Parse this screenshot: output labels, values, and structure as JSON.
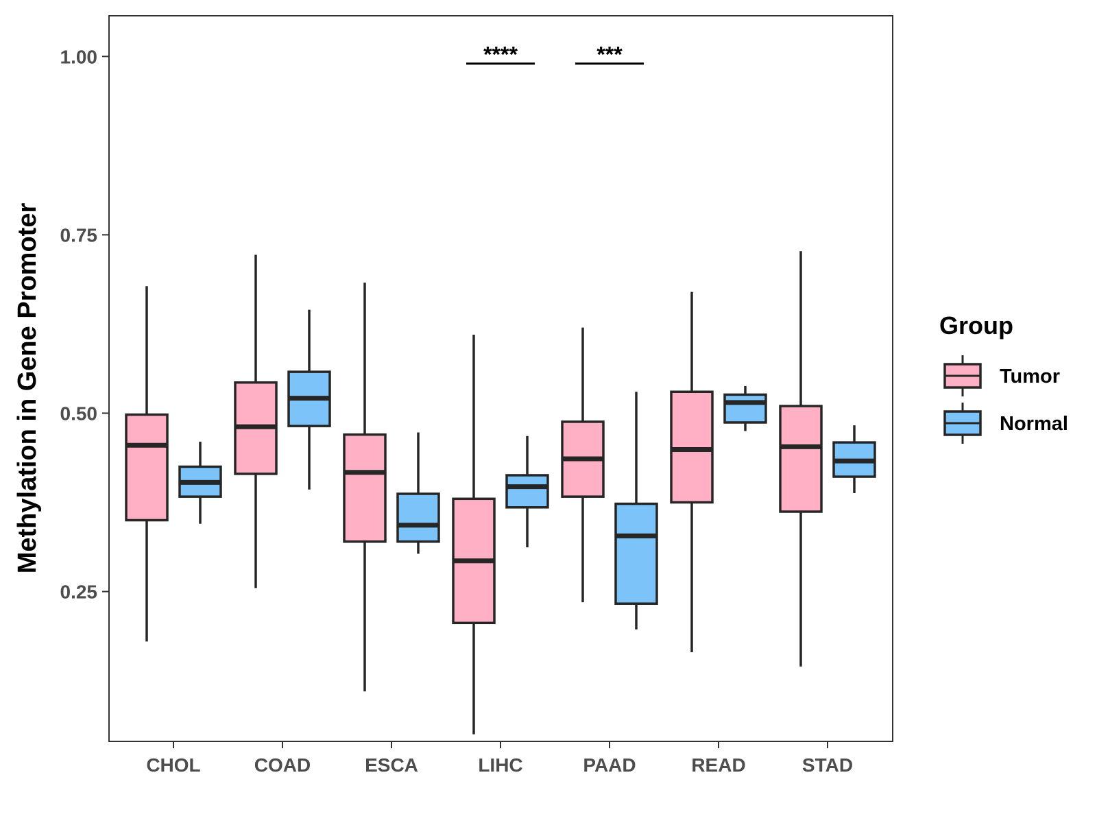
{
  "chart_data": {
    "type": "boxplot",
    "title": "",
    "xlabel": "",
    "ylabel": "Methylation in Gene Promoter",
    "ylim": [
      0.04,
      1.057
    ],
    "yticks": [
      0.25,
      0.5,
      0.75,
      1.0
    ],
    "ytick_labels": [
      "0.25",
      "0.50",
      "0.75",
      "1.00"
    ],
    "grid": false,
    "categories": [
      "CHOL",
      "COAD",
      "ESCA",
      "LIHC",
      "PAAD",
      "READ",
      "STAD"
    ],
    "legend": {
      "title": "Group",
      "position": "right",
      "entries": [
        {
          "name": "Tumor",
          "color": "#FFB0C4"
        },
        {
          "name": "Normal",
          "color": "#7BC3F8"
        }
      ]
    },
    "series": [
      {
        "name": "Tumor",
        "color": "#FFB0C4",
        "boxes": [
          {
            "category": "CHOL",
            "whisker_low": 0.18,
            "q1": 0.35,
            "median": 0.455,
            "q3": 0.498,
            "whisker_high": 0.678
          },
          {
            "category": "COAD",
            "whisker_low": 0.255,
            "q1": 0.415,
            "median": 0.481,
            "q3": 0.543,
            "whisker_high": 0.722
          },
          {
            "category": "ESCA",
            "whisker_low": 0.11,
            "q1": 0.32,
            "median": 0.417,
            "q3": 0.47,
            "whisker_high": 0.683
          },
          {
            "category": "LIHC",
            "whisker_low": 0.05,
            "q1": 0.206,
            "median": 0.293,
            "q3": 0.38,
            "whisker_high": 0.61
          },
          {
            "category": "PAAD",
            "whisker_low": 0.235,
            "q1": 0.383,
            "median": 0.436,
            "q3": 0.488,
            "whisker_high": 0.62
          },
          {
            "category": "READ",
            "whisker_low": 0.165,
            "q1": 0.375,
            "median": 0.449,
            "q3": 0.53,
            "whisker_high": 0.67
          },
          {
            "category": "STAD",
            "whisker_low": 0.145,
            "q1": 0.362,
            "median": 0.453,
            "q3": 0.51,
            "whisker_high": 0.727
          }
        ]
      },
      {
        "name": "Normal",
        "color": "#7BC3F8",
        "boxes": [
          {
            "category": "CHOL",
            "whisker_low": 0.345,
            "q1": 0.383,
            "median": 0.403,
            "q3": 0.425,
            "whisker_high": 0.46
          },
          {
            "category": "COAD",
            "whisker_low": 0.393,
            "q1": 0.482,
            "median": 0.521,
            "q3": 0.558,
            "whisker_high": 0.645
          },
          {
            "category": "ESCA",
            "whisker_low": 0.303,
            "q1": 0.32,
            "median": 0.343,
            "q3": 0.387,
            "whisker_high": 0.473
          },
          {
            "category": "LIHC",
            "whisker_low": 0.312,
            "q1": 0.368,
            "median": 0.397,
            "q3": 0.413,
            "whisker_high": 0.468
          },
          {
            "category": "PAAD",
            "whisker_low": 0.197,
            "q1": 0.233,
            "median": 0.328,
            "q3": 0.373,
            "whisker_high": 0.53
          },
          {
            "category": "READ",
            "whisker_low": 0.475,
            "q1": 0.487,
            "median": 0.515,
            "q3": 0.526,
            "whisker_high": 0.538
          },
          {
            "category": "STAD",
            "whisker_low": 0.388,
            "q1": 0.411,
            "median": 0.433,
            "q3": 0.459,
            "whisker_high": 0.483
          }
        ]
      }
    ],
    "annotations": [
      {
        "category": "LIHC",
        "label": "****",
        "y": 0.99
      },
      {
        "category": "PAAD",
        "label": "***",
        "y": 0.99
      }
    ]
  }
}
